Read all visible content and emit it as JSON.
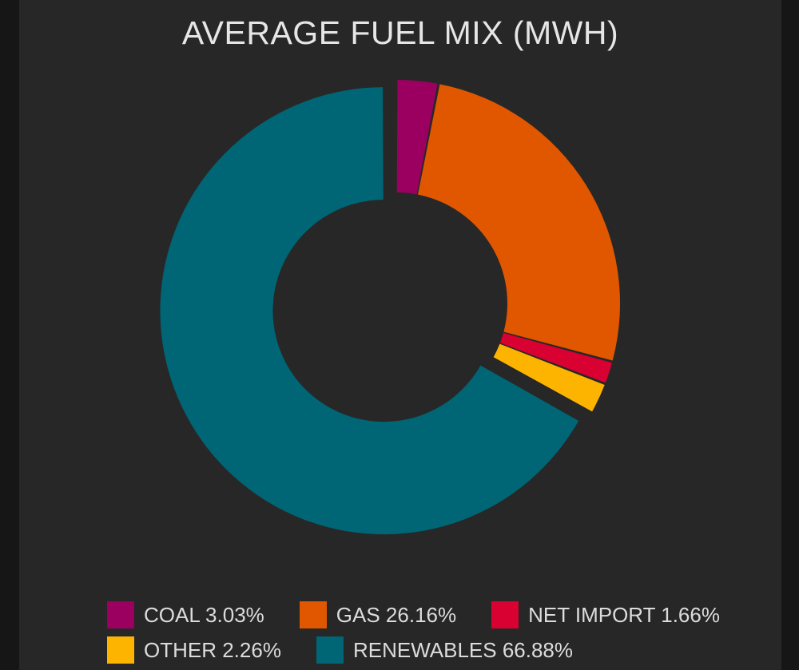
{
  "chart_data": {
    "type": "pie",
    "variant": "donut",
    "title": "AVERAGE FUEL MIX (MWH)",
    "series": [
      {
        "name": "COAL",
        "value": 3.03,
        "label": "COAL 3.03%",
        "color": "#9b0060"
      },
      {
        "name": "GAS",
        "value": 26.16,
        "label": "GAS 26.16%",
        "color": "#e05700"
      },
      {
        "name": "NET IMPORT",
        "value": 1.66,
        "label": "NET IMPORT 1.66%",
        "color": "#d90032"
      },
      {
        "name": "OTHER",
        "value": 2.26,
        "label": "OTHER 2.26%",
        "color": "#fdb400"
      },
      {
        "name": "RENEWABLES",
        "value": 66.88,
        "label": "RENEWABLES 66.88%",
        "color": "#006575"
      }
    ],
    "legend_position": "bottom",
    "background": "#272727"
  }
}
